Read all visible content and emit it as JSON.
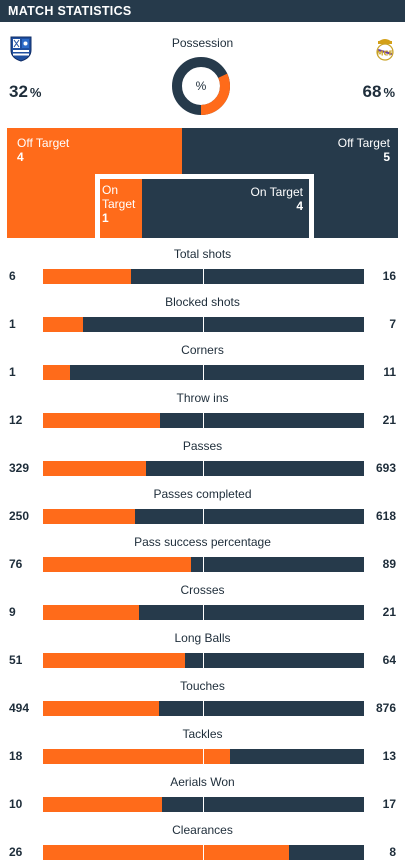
{
  "header": {
    "title": "MATCH STATISTICS"
  },
  "colors": {
    "home": "#ff6b1a",
    "away": "#263a4b"
  },
  "possession": {
    "title": "Possession",
    "home_value": "32",
    "away_value": "68",
    "unit": "%",
    "center_label": "%",
    "home_crest_icon": "real-sociedad-crest-icon",
    "away_crest_icon": "real-madrid-crest-icon"
  },
  "shots": {
    "off_target_label": "Off Target",
    "on_target_label": "On Target",
    "home_off_target": "4",
    "away_off_target": "5",
    "home_on_target": "1",
    "away_on_target": "4"
  },
  "stats": [
    {
      "label": "Total shots",
      "home": "6",
      "away": "16",
      "home_share": 0.273
    },
    {
      "label": "Blocked shots",
      "home": "1",
      "away": "7",
      "home_share": 0.125
    },
    {
      "label": "Corners",
      "home": "1",
      "away": "11",
      "home_share": 0.083
    },
    {
      "label": "Throw ins",
      "home": "12",
      "away": "21",
      "home_share": 0.364
    },
    {
      "label": "Passes",
      "home": "329",
      "away": "693",
      "home_share": 0.322
    },
    {
      "label": "Passes completed",
      "home": "250",
      "away": "618",
      "home_share": 0.288
    },
    {
      "label": "Pass success percentage",
      "home": "76",
      "away": "89",
      "home_share": 0.461
    },
    {
      "label": "Crosses",
      "home": "9",
      "away": "21",
      "home_share": 0.3
    },
    {
      "label": "Long Balls",
      "home": "51",
      "away": "64",
      "home_share": 0.443
    },
    {
      "label": "Touches",
      "home": "494",
      "away": "876",
      "home_share": 0.361
    },
    {
      "label": "Tackles",
      "home": "18",
      "away": "13",
      "home_share": 0.581
    },
    {
      "label": "Aerials Won",
      "home": "10",
      "away": "17",
      "home_share": 0.37
    },
    {
      "label": "Clearances",
      "home": "26",
      "away": "8",
      "home_share": 0.765
    }
  ]
}
